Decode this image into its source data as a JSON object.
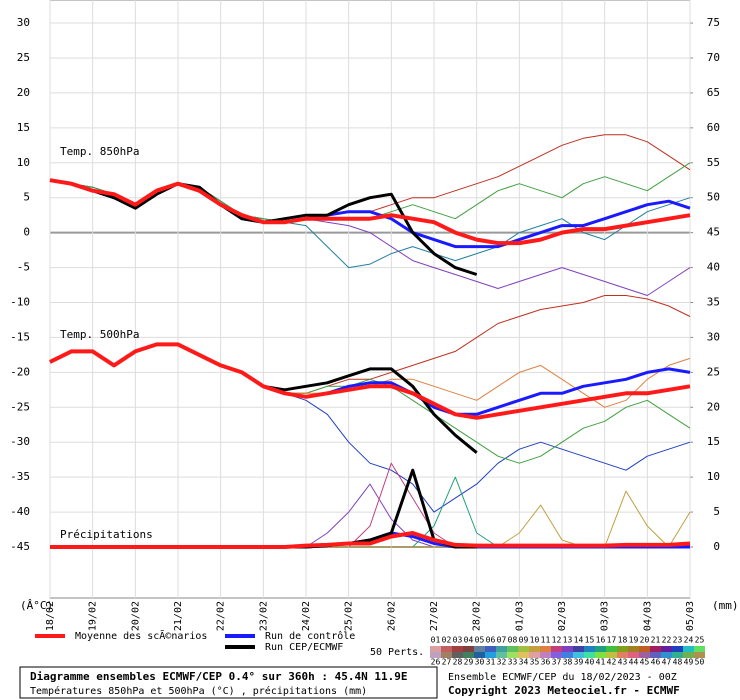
{
  "chart_data": {
    "type": "line",
    "x": [
      0,
      12,
      24,
      36,
      48,
      60,
      72,
      84,
      96,
      108,
      120,
      132,
      144,
      156,
      168,
      180,
      192,
      204,
      216,
      228,
      240,
      252,
      264,
      276,
      288,
      300,
      312,
      324,
      336,
      348,
      360
    ],
    "xlim": [
      0,
      360
    ],
    "xticks": [
      {
        "value": 0,
        "label": "18/02"
      },
      {
        "value": 24,
        "label": "19/02"
      },
      {
        "value": 48,
        "label": "20/02"
      },
      {
        "value": 72,
        "label": "21/02"
      },
      {
        "value": 96,
        "label": "22/02"
      },
      {
        "value": 120,
        "label": "23/02"
      },
      {
        "value": 144,
        "label": "24/02"
      },
      {
        "value": 168,
        "label": "25/02"
      },
      {
        "value": 192,
        "label": "26/02"
      },
      {
        "value": 216,
        "label": "27/02"
      },
      {
        "value": 240,
        "label": "28/02"
      },
      {
        "value": 264,
        "label": "01/03"
      },
      {
        "value": 288,
        "label": "02/03"
      },
      {
        "value": 312,
        "label": "03/03"
      },
      {
        "value": 336,
        "label": "04/03"
      },
      {
        "value": 360,
        "label": "05/03"
      }
    ],
    "ylim": [
      -52.3,
      33.3
    ],
    "yticks": [
      -45,
      -40,
      -35,
      -30,
      -25,
      -20,
      -15,
      -10,
      -5,
      0,
      5,
      10,
      15,
      20,
      25,
      30
    ],
    "y2lim": [
      -7.3,
      78.3
    ],
    "y2ticks": [
      0,
      5,
      10,
      15,
      20,
      25,
      30,
      35,
      40,
      45,
      50,
      55,
      60,
      65,
      70,
      75
    ],
    "ylabel": "(Â°C)",
    "y2label": "(mm)",
    "grid": true,
    "legend": [
      {
        "name": "Moyenne des scÃ©narios",
        "color": "#ff1a1a"
      },
      {
        "name": "Run de contrôle",
        "color": "#1a1aff"
      },
      {
        "name": "Run CEP/ECMWF",
        "color": "#000000"
      }
    ],
    "perts_label": "50 Perts.",
    "perts": [
      {
        "label": "01",
        "color": "#d8a0a0"
      },
      {
        "label": "02",
        "color": "#c06060"
      },
      {
        "label": "03",
        "color": "#a04040"
      },
      {
        "label": "04",
        "color": "#804040"
      },
      {
        "label": "05",
        "color": "#6080a0"
      },
      {
        "label": "06",
        "color": "#4060c0"
      },
      {
        "label": "07",
        "color": "#40a0a0"
      },
      {
        "label": "08",
        "color": "#60c060"
      },
      {
        "label": "09",
        "color": "#a0c040"
      },
      {
        "label": "10",
        "color": "#c0a040"
      },
      {
        "label": "11",
        "color": "#e08040"
      },
      {
        "label": "12",
        "color": "#c04080"
      },
      {
        "label": "13",
        "color": "#8040c0"
      },
      {
        "label": "14",
        "color": "#4040a0"
      },
      {
        "label": "15",
        "color": "#2080c0"
      },
      {
        "label": "16",
        "color": "#20a080"
      },
      {
        "label": "17",
        "color": "#40c040"
      },
      {
        "label": "18",
        "color": "#80a020"
      },
      {
        "label": "19",
        "color": "#a08020"
      },
      {
        "label": "20",
        "color": "#c06020"
      },
      {
        "label": "21",
        "color": "#a02060"
      },
      {
        "label": "22",
        "color": "#6020a0"
      },
      {
        "label": "23",
        "color": "#2040c0"
      },
      {
        "label": "24",
        "color": "#20c0c0"
      },
      {
        "label": "25",
        "color": "#60e060"
      },
      {
        "label": "26",
        "color": "#c0a0c0"
      },
      {
        "label": "27",
        "color": "#a08060"
      },
      {
        "label": "28",
        "color": "#606060"
      },
      {
        "label": "29",
        "color": "#408060"
      },
      {
        "label": "30",
        "color": "#2060a0"
      },
      {
        "label": "31",
        "color": "#20a0e0"
      },
      {
        "label": "32",
        "color": "#60c0a0"
      },
      {
        "label": "33",
        "color": "#a0e060"
      },
      {
        "label": "34",
        "color": "#e0c060"
      },
      {
        "label": "35",
        "color": "#e0a0a0"
      },
      {
        "label": "36",
        "color": "#c080c0"
      },
      {
        "label": "37",
        "color": "#8060e0"
      },
      {
        "label": "38",
        "color": "#4080e0"
      },
      {
        "label": "39",
        "color": "#40c0e0"
      },
      {
        "label": "40",
        "color": "#40e0a0"
      },
      {
        "label": "41",
        "color": "#80e040"
      },
      {
        "label": "42",
        "color": "#c0c040"
      },
      {
        "label": "43",
        "color": "#e08060"
      },
      {
        "label": "44",
        "color": "#e06080"
      },
      {
        "label": "45",
        "color": "#a060a0"
      },
      {
        "label": "46",
        "color": "#6060c0"
      },
      {
        "label": "47",
        "color": "#3090d0"
      },
      {
        "label": "48",
        "color": "#30b090"
      },
      {
        "label": "49",
        "color": "#70b050"
      },
      {
        "label": "50",
        "color": "#b09050"
      }
    ],
    "panels": [
      {
        "label": "Temp. 850hPa",
        "axis": "y",
        "mean": [
          7.5,
          7,
          6,
          5.5,
          4,
          6,
          7,
          6,
          4,
          2.5,
          1.5,
          1.5,
          2,
          2,
          2,
          2,
          2.5,
          2,
          1.5,
          0,
          -1,
          -1.5,
          -1.5,
          -1,
          0,
          0.5,
          0.5,
          1,
          1.5,
          2,
          2.5
        ],
        "control": [
          7.5,
          7,
          6,
          5,
          4,
          6,
          7,
          6,
          4,
          2,
          1.5,
          1.5,
          2,
          2.5,
          3,
          3,
          2,
          0,
          -1,
          -2,
          -2,
          -2,
          -1,
          0,
          1,
          1,
          2,
          3,
          4,
          4.5,
          3.5
        ],
        "deterministic": [
          7.5,
          7,
          6,
          5,
          3.5,
          5.5,
          7,
          6.5,
          4,
          2,
          1.5,
          2,
          2.5,
          2.5,
          4,
          5,
          5.5,
          0,
          -3,
          -5,
          -6,
          null,
          null,
          null,
          null,
          null,
          null,
          null,
          null,
          null,
          null
        ],
        "perturbations": [
          {
            "color": "#c03020",
            "values": [
              7.5,
              7,
              6.5,
              5.5,
              4,
              6,
              7,
              6.5,
              4.5,
              2.5,
              2,
              1.5,
              2,
              2.5,
              3,
              3,
              4,
              5,
              5,
              6,
              7,
              8,
              9.5,
              11,
              12.5,
              13.5,
              14,
              14,
              13,
              11,
              9
            ]
          },
          {
            "color": "#8040c0",
            "values": [
              7.5,
              7,
              6.5,
              5.5,
              4,
              6,
              7,
              6.5,
              4.5,
              2.5,
              2,
              1.5,
              2,
              1.5,
              1,
              0,
              -2,
              -4,
              -5,
              -6,
              -7,
              -8,
              -7,
              -6,
              -5,
              -6,
              -7,
              -8,
              -9,
              -7,
              -5
            ]
          },
          {
            "color": "#2080a0",
            "values": [
              7.5,
              7,
              6.5,
              5.5,
              4,
              6,
              7,
              6.5,
              4.5,
              2.5,
              2,
              1.5,
              1,
              -2,
              -5,
              -4.5,
              -3,
              -2,
              -3,
              -4,
              -3,
              -2,
              0,
              1,
              2,
              0,
              -1,
              1,
              3,
              4,
              5
            ]
          },
          {
            "color": "#40a040",
            "values": [
              7.5,
              7,
              6.5,
              5.5,
              4,
              6,
              7,
              6.5,
              4.5,
              2.5,
              2,
              1.5,
              2,
              2,
              2,
              2,
              3,
              4,
              3,
              2,
              4,
              6,
              7,
              6,
              5,
              7,
              8,
              7,
              6,
              8,
              10
            ]
          }
        ]
      },
      {
        "label": "Temp. 500hPa",
        "axis": "y",
        "mean": [
          -18.5,
          -17,
          -17,
          -19,
          -17,
          -16,
          -16,
          -17.5,
          -19,
          -20,
          -22,
          -23,
          -23.5,
          -23,
          -22.5,
          -22,
          -22,
          -23,
          -24.5,
          -26,
          -26.5,
          -26,
          -25.5,
          -25,
          -24.5,
          -24,
          -23.5,
          -23,
          -23,
          -22.5,
          -22
        ],
        "control": [
          -18.5,
          -17,
          -17,
          -19,
          -17,
          -16,
          -16,
          -17.5,
          -19,
          -20,
          -22,
          -23,
          -23.5,
          -23,
          -22,
          -21.5,
          -21.5,
          -23,
          -25,
          -26,
          -26,
          -25,
          -24,
          -23,
          -23,
          -22,
          -21.5,
          -21,
          -20,
          -19.5,
          -20
        ],
        "deterministic": [
          -18.5,
          -17,
          -17,
          -19,
          -17,
          -16,
          -16,
          -17.5,
          -19,
          -20,
          -22,
          -22.5,
          -22,
          -21.5,
          -20.5,
          -19.5,
          -19.5,
          -22,
          -26,
          -29,
          -31.5,
          null,
          null,
          null,
          null,
          null,
          null,
          null,
          null,
          null,
          null
        ],
        "perturbations": [
          {
            "color": "#c03020",
            "values": [
              -18.5,
              -17,
              -17,
              -19,
              -17,
              -16,
              -16,
              -17.5,
              -19,
              -20,
              -22,
              -23,
              -23,
              -22,
              -21,
              -21,
              -20,
              -19,
              -18,
              -17,
              -15,
              -13,
              -12,
              -11,
              -10.5,
              -10,
              -9,
              -9,
              -9.5,
              -10.5,
              -12
            ]
          },
          {
            "color": "#2040c0",
            "values": [
              -18.5,
              -17,
              -17,
              -19,
              -17,
              -16,
              -16,
              -17.5,
              -19,
              -20,
              -22,
              -23,
              -24,
              -26,
              -30,
              -33,
              -34,
              -36,
              -40,
              -38,
              -36,
              -33,
              -31,
              -30,
              -31,
              -32,
              -33,
              -34,
              -32,
              -31,
              -30
            ]
          },
          {
            "color": "#40a040",
            "values": [
              -18.5,
              -17,
              -17,
              -19,
              -17,
              -16,
              -16,
              -17.5,
              -19,
              -20,
              -22,
              -23,
              -23,
              -22,
              -22,
              -21,
              -22,
              -24,
              -26,
              -28,
              -30,
              -32,
              -33,
              -32,
              -30,
              -28,
              -27,
              -25,
              -24,
              -26,
              -28
            ]
          },
          {
            "color": "#e08040",
            "values": [
              -18.5,
              -17,
              -17,
              -19,
              -17,
              -16,
              -16,
              -17.5,
              -19,
              -20,
              -22,
              -23,
              -23,
              -23,
              -22,
              -22,
              -21,
              -21,
              -22,
              -23,
              -24,
              -22,
              -20,
              -19,
              -21,
              -23,
              -25,
              -24,
              -21,
              -19,
              -18
            ]
          }
        ]
      },
      {
        "label": "Précipitations",
        "axis": "y2",
        "mean": [
          0,
          0,
          0,
          0,
          0,
          0,
          0,
          0,
          0,
          0,
          0,
          0,
          0.2,
          0.3,
          0.5,
          0.5,
          1.5,
          2,
          1,
          0.3,
          0.2,
          0.2,
          0.2,
          0.2,
          0.2,
          0.2,
          0.2,
          0.3,
          0.3,
          0.3,
          0.5
        ],
        "control": [
          0,
          0,
          0,
          0,
          0,
          0,
          0,
          0,
          0,
          0,
          0,
          0,
          0,
          0.2,
          0.5,
          1,
          2,
          1.5,
          0.5,
          0,
          0,
          0,
          0,
          0,
          0,
          0,
          0,
          0,
          0,
          0,
          0
        ],
        "deterministic": [
          0,
          0,
          0,
          0,
          0,
          0,
          0,
          0,
          0,
          0,
          0,
          0,
          0,
          0.2,
          0.5,
          1,
          2,
          11,
          1,
          0,
          0,
          null,
          null,
          null,
          null,
          null,
          null,
          null,
          null,
          null,
          null
        ],
        "perturbations": [
          {
            "color": "#8040c0",
            "values": [
              0,
              0,
              0,
              0,
              0,
              0,
              0,
              0,
              0,
              0,
              0,
              0,
              0,
              2,
              5,
              9,
              4,
              1,
              0,
              0,
              0,
              0,
              0,
              0,
              0,
              0,
              0,
              0,
              0,
              0,
              0
            ]
          },
          {
            "color": "#c04080",
            "values": [
              0,
              0,
              0,
              0,
              0,
              0,
              0,
              0,
              0,
              0,
              0,
              0,
              0,
              0,
              0,
              3,
              12,
              7,
              2,
              0,
              0,
              0,
              0,
              0,
              0,
              0,
              0,
              0,
              0,
              0,
              0
            ]
          },
          {
            "color": "#20a080",
            "values": [
              0,
              0,
              0,
              0,
              0,
              0,
              0,
              0,
              0,
              0,
              0,
              0,
              0,
              0,
              0,
              0,
              0,
              0,
              3,
              10,
              2,
              0,
              0,
              0,
              0,
              0,
              0,
              0,
              0,
              0,
              0
            ]
          },
          {
            "color": "#c0a040",
            "values": [
              0,
              0,
              0,
              0,
              0,
              0,
              0,
              0,
              0,
              0,
              0,
              0,
              0,
              0,
              0,
              0,
              0,
              0,
              0,
              0,
              0,
              0,
              2,
              6,
              1,
              0,
              0,
              8,
              3,
              0,
              5
            ]
          }
        ]
      }
    ],
    "title": "Diagramme ensembles ECMWF/CEP 0.4° sur 360h : 45.4N 11.9E",
    "subtitle": "Températures 850hPa et 500hPa (°C) , précipitations (mm)",
    "run_info": "Ensemble ECMWF/CEP du 18/02/2023 - 00Z",
    "copyright": "Copyright 2023 Meteociel.fr - ECMWF"
  }
}
